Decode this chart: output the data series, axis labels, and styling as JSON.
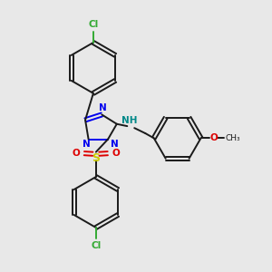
{
  "bg_color": "#e8e8e8",
  "bond_color": "#1a1a1a",
  "N_color": "#0000ee",
  "O_color": "#dd0000",
  "S_color": "#cccc00",
  "Cl_color": "#33aa33",
  "NH_color": "#008888",
  "figsize": [
    3.0,
    3.0
  ],
  "dpi": 100,
  "xlim": [
    0,
    10
  ],
  "ylim": [
    0,
    10
  ]
}
